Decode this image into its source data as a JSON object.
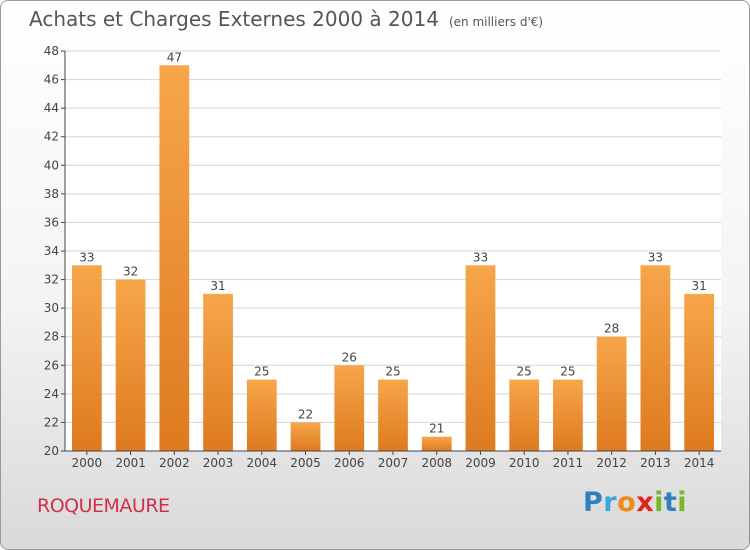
{
  "header": {
    "title": "Achats et Charges Externes 2000 à 2014",
    "unit": "(en milliers d'€)"
  },
  "footer": {
    "commune": "ROQUEMAURE",
    "brand": "Proxiti",
    "brand_letters": [
      {
        "ch": "P",
        "color": "#2f7fc1"
      },
      {
        "ch": "r",
        "color": "#3aa7d8"
      },
      {
        "ch": "o",
        "color": "#f08a1c"
      },
      {
        "ch": "x",
        "color": "#e2231a"
      },
      {
        "ch": "i",
        "color": "#77b82a"
      },
      {
        "ch": "t",
        "color": "#2f7fc1"
      },
      {
        "ch": "i",
        "color": "#77b82a"
      }
    ]
  },
  "colors": {
    "bar_light": "#f7a64a",
    "bar_dark": "#de7a1f",
    "grid": "#d6d6d6",
    "axis": "#444444",
    "text": "#444444"
  },
  "chart_data": {
    "type": "bar",
    "title": "Achats et Charges Externes 2000 à 2014",
    "subtitle": "(en milliers d'€)",
    "xlabel": "",
    "ylabel": "",
    "categories": [
      "2000",
      "2001",
      "2002",
      "2003",
      "2004",
      "2005",
      "2006",
      "2007",
      "2008",
      "2009",
      "2010",
      "2011",
      "2012",
      "2013",
      "2014"
    ],
    "values": [
      33,
      32,
      47,
      31,
      25,
      22,
      26,
      25,
      21,
      33,
      25,
      25,
      28,
      33,
      31
    ],
    "ylim": [
      20,
      48
    ],
    "yticks": [
      20,
      22,
      24,
      26,
      28,
      30,
      32,
      34,
      36,
      38,
      40,
      42,
      44,
      46,
      48
    ],
    "grid": true,
    "data_labels": true
  }
}
